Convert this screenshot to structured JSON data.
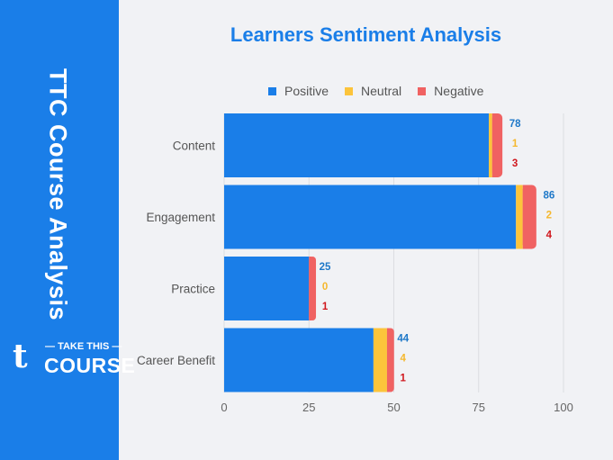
{
  "sidebar": {
    "title": "TTC Course Analysis",
    "logo_top": "TAKE THIS",
    "logo_bottom": "COURSE",
    "logo_icon": "t-logo-icon"
  },
  "colors": {
    "sidebar": "#1a7ee8",
    "positive": "#1a7ee8",
    "neutral": "#fcc43b",
    "negative": "#f06262",
    "positive_label": "#1e78c8",
    "neutral_label": "#f5b82e",
    "negative_label": "#d0171d"
  },
  "chart_data": {
    "type": "bar",
    "orientation": "horizontal",
    "stacked": true,
    "title": "Learners Sentiment Analysis",
    "categories": [
      "Content",
      "Engagement",
      "Practice",
      "Career Benefit"
    ],
    "series": [
      {
        "name": "Positive",
        "values": [
          78,
          86,
          25,
          44
        ]
      },
      {
        "name": "Neutral",
        "values": [
          1,
          2,
          0,
          4
        ]
      },
      {
        "name": "Negative",
        "values": [
          3,
          4,
          1,
          1
        ]
      }
    ],
    "xlim": [
      0,
      100
    ],
    "xticks": [
      0,
      25,
      50,
      75,
      100
    ],
    "grid": true,
    "legend": "top"
  }
}
